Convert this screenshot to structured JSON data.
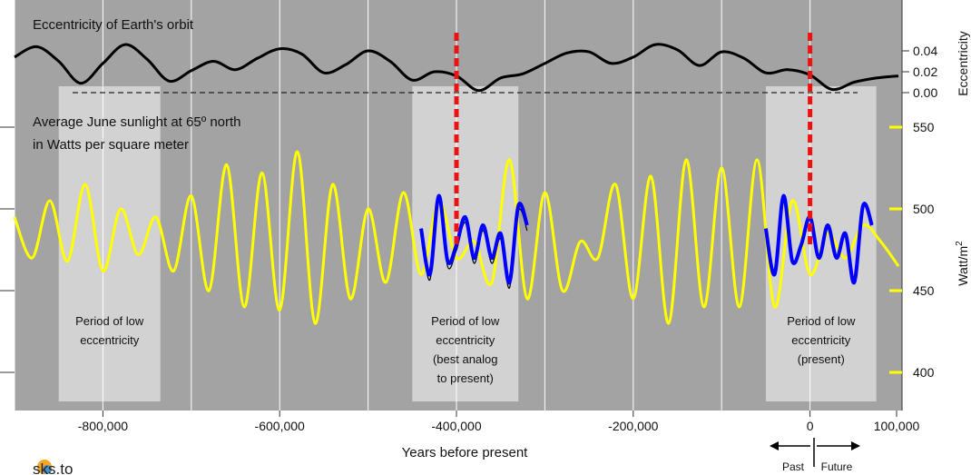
{
  "chart_data": {
    "type": "line",
    "xlabel": "Years before present",
    "xlim": [
      -900000,
      100000
    ],
    "x_ticks": [
      -800000,
      -600000,
      -400000,
      -200000,
      0,
      100000
    ],
    "x_tick_labels": [
      "-800,000",
      "-600,000",
      "-400,000",
      "-200,000",
      "0",
      "100,000"
    ],
    "grid": true,
    "panels": [
      {
        "title": "Eccentricity of Earth's orbit",
        "ylabel": "Eccentricity",
        "ylim": [
          0,
          0.05
        ],
        "y_ticks": [
          0.04,
          0.02,
          0.0
        ],
        "y_tick_labels": [
          "0.04",
          "0.02",
          "0.00"
        ],
        "series": [
          {
            "color": "#000000",
            "x": [
              -900000,
              -875000,
              -850000,
              -825000,
              -800000,
              -775000,
              -750000,
              -725000,
              -700000,
              -675000,
              -650000,
              -625000,
              -600000,
              -575000,
              -550000,
              -525000,
              -500000,
              -475000,
              -450000,
              -425000,
              -400000,
              -375000,
              -350000,
              -325000,
              -300000,
              -275000,
              -250000,
              -225000,
              -200000,
              -175000,
              -150000,
              -125000,
              -100000,
              -75000,
              -50000,
              -25000,
              0,
              25000,
              50000,
              75000,
              100000
            ],
            "values": [
              0.034,
              0.044,
              0.03,
              0.009,
              0.028,
              0.046,
              0.032,
              0.011,
              0.021,
              0.03,
              0.022,
              0.033,
              0.042,
              0.037,
              0.019,
              0.027,
              0.04,
              0.03,
              0.012,
              0.02,
              0.016,
              0.002,
              0.014,
              0.018,
              0.028,
              0.038,
              0.039,
              0.028,
              0.034,
              0.046,
              0.041,
              0.026,
              0.039,
              0.033,
              0.019,
              0.022,
              0.017,
              0.003,
              0.01,
              0.014,
              0.016
            ]
          }
        ],
        "reference_line": 0.0
      },
      {
        "title": "Average June sunlight at 65º north in Watts per square meter",
        "ylabel": "Watt/m²",
        "ylim": [
          380,
          570
        ],
        "y_ticks": [
          550,
          500,
          450,
          400
        ],
        "y_tick_labels": [
          "550",
          "500",
          "450",
          "400"
        ],
        "series": [
          {
            "color": "#ffff00",
            "x": [
              -900000,
              -880000,
              -860000,
              -840000,
              -820000,
              -800000,
              -780000,
              -760000,
              -740000,
              -720000,
              -700000,
              -680000,
              -660000,
              -640000,
              -620000,
              -600000,
              -580000,
              -560000,
              -540000,
              -520000,
              -500000,
              -480000,
              -460000,
              -440000,
              -420000,
              -400000,
              -380000,
              -360000,
              -340000,
              -320000,
              -300000,
              -280000,
              -260000,
              -240000,
              -220000,
              -200000,
              -180000,
              -160000,
              -140000,
              -120000,
              -100000,
              -80000,
              -60000,
              -40000,
              -20000,
              0,
              20000,
              40000,
              60000,
              80000,
              100000
            ],
            "values": [
              495,
              470,
              505,
              468,
              515,
              462,
              500,
              472,
              495,
              462,
              508,
              450,
              527,
              440,
              522,
              438,
              535,
              430,
              515,
              445,
              500,
              455,
              510,
              460,
              505,
              470,
              480,
              455,
              530,
              445,
              510,
              450,
              480,
              470,
              515,
              445,
              520,
              430,
              530,
              440,
              525,
              440,
              530,
              440,
              505,
              460,
              485,
              470,
              490,
              480,
              465
            ]
          },
          {
            "color": "#0000ff",
            "x": [
              -440000,
              -430000,
              -420000,
              -410000,
              -400000,
              -390000,
              -380000,
              -370000,
              -360000,
              -350000,
              -340000,
              -330000,
              -320000,
              -50000,
              -40000,
              -30000,
              -20000,
              -10000,
              0,
              10000,
              20000,
              30000,
              40000,
              50000,
              60000,
              70000
            ],
            "values": [
              488,
              460,
              508,
              468,
              478,
              495,
              470,
              490,
              470,
              485,
              455,
              502,
              490,
              488,
              460,
              508,
              468,
              478,
              495,
              470,
              490,
              470,
              485,
              455,
              502,
              490
            ]
          }
        ]
      }
    ],
    "shaded_regions": [
      {
        "x_range": [
          -850000,
          -735000
        ],
        "label": "Period of low eccentricity"
      },
      {
        "x_range": [
          -450000,
          -330000
        ],
        "label": "Period of low eccentricity (best analog to present)"
      },
      {
        "x_range": [
          -50000,
          75000
        ],
        "label": "Period of low eccentricity (present)"
      }
    ],
    "markers": [
      {
        "x": -400000,
        "color": "#ee1111"
      },
      {
        "x": 0,
        "color": "#ee1111"
      }
    ],
    "direction_labels": {
      "past": "Past",
      "future": "Future"
    }
  },
  "footer": {
    "logo_text": "sks.to"
  },
  "colors": {
    "background": "#a3a3a3",
    "shade": "#d2d2d2",
    "grid": "#ffffff",
    "sunlight": "#ffff00",
    "tick": "#ffff00"
  }
}
